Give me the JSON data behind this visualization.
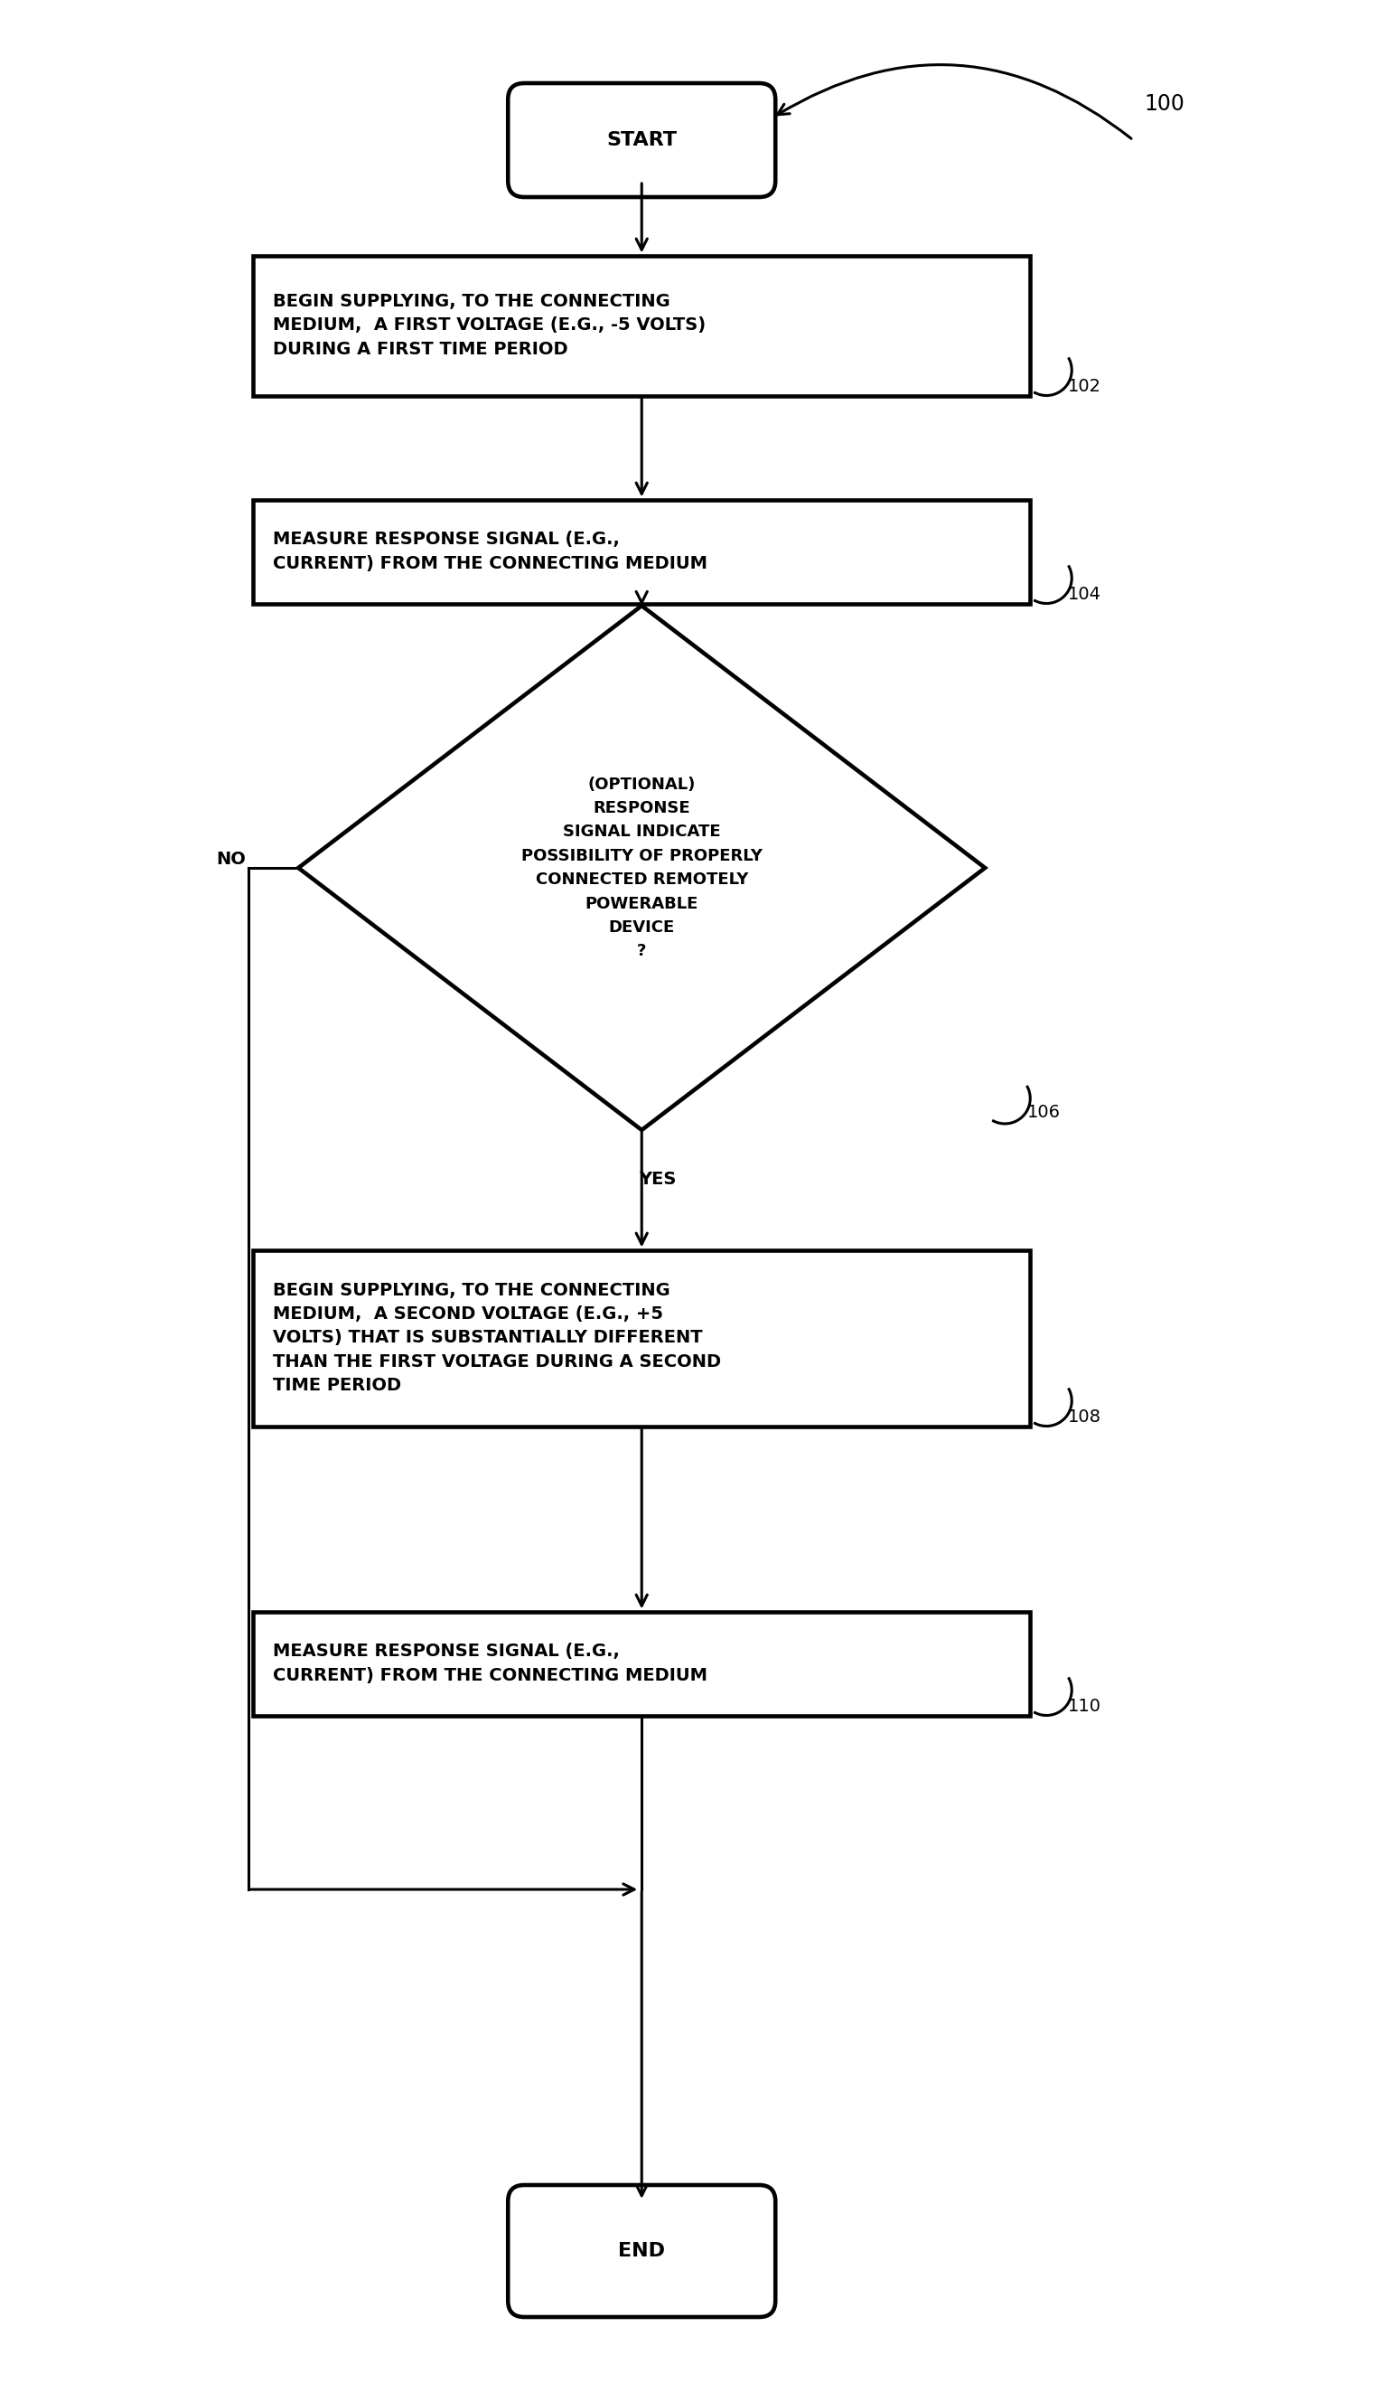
{
  "bg_color": "#ffffff",
  "line_color": "#000000",
  "text_color": "#000000",
  "fig_width": 15.44,
  "fig_height": 26.57,
  "lw": 2.2,
  "start_label": "START",
  "end_label": "END",
  "box102_text": "BEGIN SUPPLYING, TO THE CONNECTING\nMEDIUM,  A FIRST VOLTAGE (E.G., -5 VOLTS)\nDURING A FIRST TIME PERIOD",
  "box102_ref": "102",
  "box104_text": "MEASURE RESPONSE SIGNAL (E.G.,\nCURRENT) FROM THE CONNECTING MEDIUM",
  "box104_ref": "104",
  "diamond106_text": "(OPTIONAL)\nRESPONSE\nSIGNAL INDICATE\nPOSSIBILITY OF PROPERLY\nCONNECTED REMOTELY\nPOWERABLE\nDEVICE\n?",
  "diamond106_ref": "106",
  "box108_text": "BEGIN SUPPLYING, TO THE CONNECTING\nMEDIUM,  A SECOND VOLTAGE (E.G., +5\nVOLTS) THAT IS SUBSTANTIALLY DIFFERENT\nTHAN THE FIRST VOLTAGE DURING A SECOND\nTIME PERIOD",
  "box108_ref": "108",
  "box110_text": "MEASURE RESPONSE SIGNAL (E.G.,\nCURRENT) FROM THE CONNECTING MEDIUM",
  "box110_ref": "110",
  "ref100": "100",
  "yes_label": "YES",
  "no_label": "NO",
  "font_main": 14,
  "font_label": 14,
  "font_ref": 14,
  "font_terminal": 16
}
